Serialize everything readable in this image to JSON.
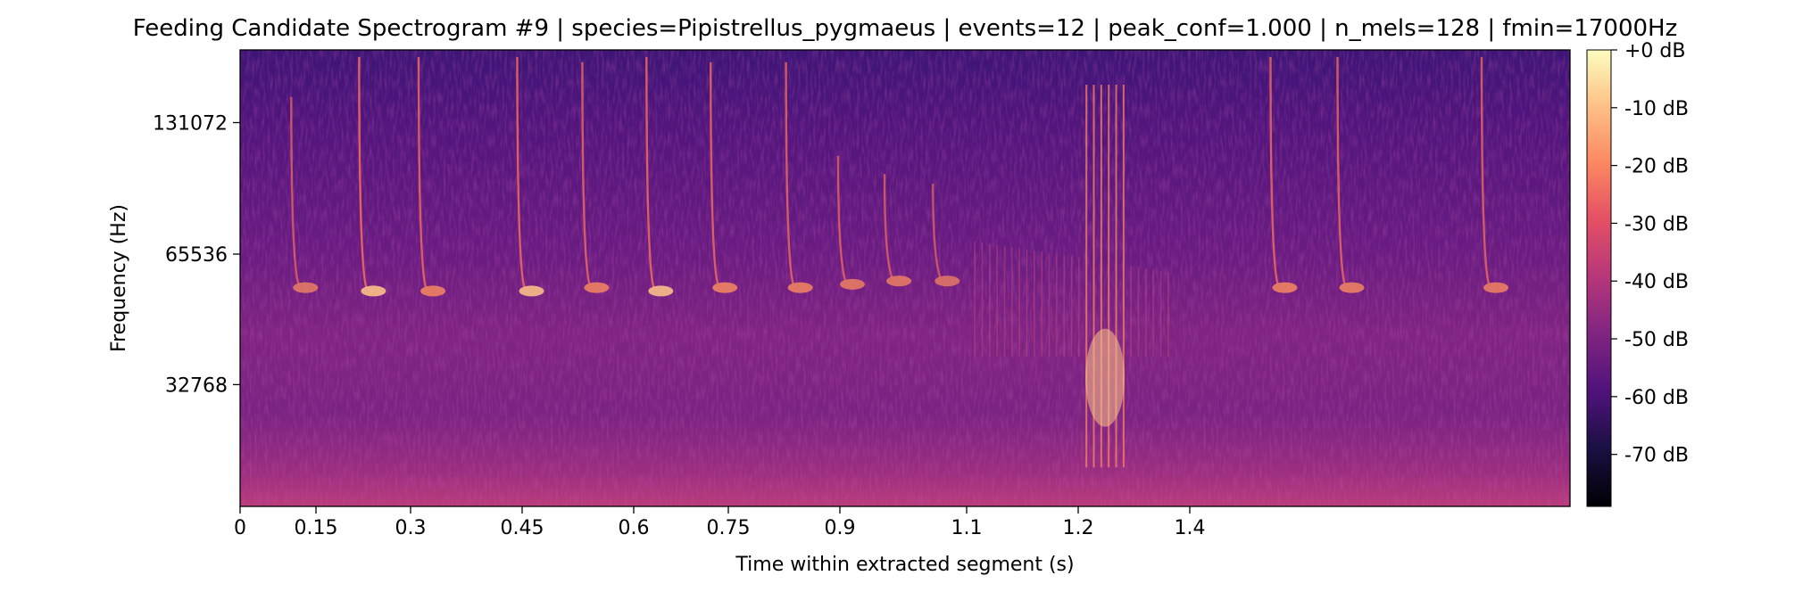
{
  "chart_data": {
    "type": "heatmap",
    "title": "Feeding Candidate Spectrogram #9 | species=Pipistrellus_pygmaeus | events=12 | peak_conf=1.000 | n_mels=128 | fmin=17000Hz",
    "xlabel": "Time within extracted segment (s)",
    "ylabel": "Frequency (Hz)",
    "x_ticks": [
      "0",
      "0.15",
      "0.3",
      "0.45",
      "0.6",
      "0.75",
      "0.9",
      "1.1",
      "1.2",
      "1.4"
    ],
    "y_ticks": [
      "32768",
      "65536",
      "131072"
    ],
    "y_scale": "mel",
    "y_range_hz": [
      17000,
      192000
    ],
    "colorbar_ticks": [
      "+0 dB",
      "-10 dB",
      "-20 dB",
      "-30 dB",
      "-40 dB",
      "-50 dB",
      "-60 dB",
      "-70 dB"
    ],
    "colorbar_range_db": [
      -79,
      0
    ],
    "colormap": "magma",
    "calls": [
      {
        "t": 0.055,
        "f_high": 150000,
        "f_low": 56000,
        "intensity": 0.55
      },
      {
        "t": 0.128,
        "f_high": 185000,
        "f_low": 55000,
        "intensity": 0.85
      },
      {
        "t": 0.192,
        "f_high": 185000,
        "f_low": 55000,
        "intensity": 0.75
      },
      {
        "t": 0.298,
        "f_high": 185000,
        "f_low": 55000,
        "intensity": 0.8
      },
      {
        "t": 0.368,
        "f_high": 180000,
        "f_low": 56000,
        "intensity": 0.7
      },
      {
        "t": 0.437,
        "f_high": 185000,
        "f_low": 55000,
        "intensity": 0.8
      },
      {
        "t": 0.506,
        "f_high": 180000,
        "f_low": 56000,
        "intensity": 0.75
      },
      {
        "t": 0.587,
        "f_high": 180000,
        "f_low": 56000,
        "intensity": 0.7
      },
      {
        "t": 0.643,
        "f_high": 110000,
        "f_low": 57000,
        "intensity": 0.6
      },
      {
        "t": 0.693,
        "f_high": 100000,
        "f_low": 58000,
        "intensity": 0.55
      },
      {
        "t": 0.745,
        "f_high": 95000,
        "f_low": 58000,
        "intensity": 0.45
      },
      {
        "t": 1.108,
        "f_high": 185000,
        "f_low": 56000,
        "intensity": 0.75
      },
      {
        "t": 1.18,
        "f_high": 185000,
        "f_low": 56000,
        "intensity": 0.7
      },
      {
        "t": 1.335,
        "f_high": 185000,
        "f_low": 56000,
        "intensity": 0.65
      }
    ]
  }
}
